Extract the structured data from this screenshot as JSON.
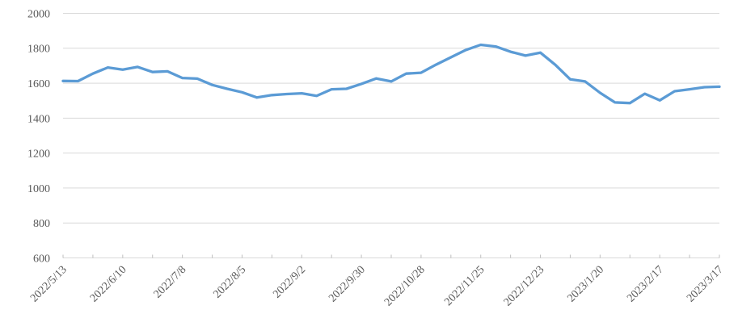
{
  "chart_data": {
    "type": "line",
    "title": "",
    "legend_position": "none",
    "grid": true,
    "x": [
      "2022/5/13",
      "2022/5/20",
      "2022/5/27",
      "2022/6/3",
      "2022/6/10",
      "2022/6/17",
      "2022/6/24",
      "2022/7/1",
      "2022/7/8",
      "2022/7/15",
      "2022/7/22",
      "2022/7/29",
      "2022/8/5",
      "2022/8/12",
      "2022/8/19",
      "2022/8/26",
      "2022/9/2",
      "2022/9/9",
      "2022/9/16",
      "2022/9/23",
      "2022/9/30",
      "2022/10/7",
      "2022/10/14",
      "2022/10/21",
      "2022/10/28",
      "2022/11/4",
      "2022/11/11",
      "2022/11/18",
      "2022/11/25",
      "2022/12/2",
      "2022/12/9",
      "2022/12/16",
      "2022/12/23",
      "2022/12/30",
      "2023/1/6",
      "2023/1/13",
      "2023/1/20",
      "2023/1/27",
      "2023/2/3",
      "2023/2/10",
      "2023/2/17",
      "2023/2/24",
      "2023/3/3",
      "2023/3/10",
      "2023/3/17"
    ],
    "values": [
      1613,
      1612,
      1655,
      1690,
      1678,
      1693,
      1664,
      1668,
      1630,
      1626,
      1590,
      1568,
      1548,
      1518,
      1532,
      1538,
      1542,
      1528,
      1565,
      1568,
      1596,
      1627,
      1610,
      1655,
      1660,
      1706,
      1748,
      1790,
      1820,
      1810,
      1780,
      1758,
      1775,
      1705,
      1622,
      1610,
      1545,
      1490,
      1486,
      1540,
      1502,
      1554,
      1565,
      1577,
      1580
    ],
    "x_tick_labels_shown": [
      "2022/5/13",
      "2022/6/10",
      "2022/7/8",
      "2022/8/5",
      "2022/9/2",
      "2022/9/30",
      "2022/10/28",
      "2022/11/25",
      "2022/12/23",
      "2023/1/20",
      "2023/2/17",
      "2023/3/17"
    ],
    "label_every": 4,
    "tick_mark_every": 2,
    "yticks": [
      600,
      800,
      1000,
      1200,
      1400,
      1600,
      1800,
      2000
    ],
    "ylim": [
      600,
      2000
    ],
    "xlabel": "",
    "ylabel": "",
    "colors": {
      "line": "#5B9BD5",
      "gridline": "#D9D9D9",
      "axis": "#D9D9D9",
      "tick": "#BFBFBF",
      "label": "#595959"
    }
  }
}
